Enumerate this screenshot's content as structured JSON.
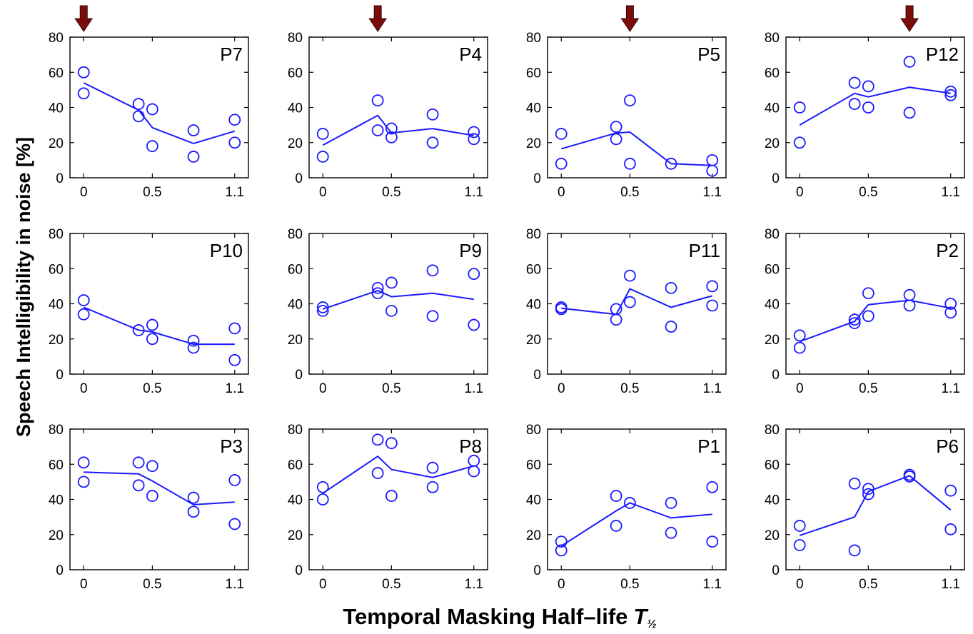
{
  "chart_data": {
    "type": "scatter",
    "xlabel": "Temporal Masking Half–life",
    "xlabel_symbol": "T",
    "xlabel_subscript": "½",
    "ylabel": "Speech Intelligibility in noise [%]",
    "xlim": [
      -0.1,
      1.2
    ],
    "ylim": [
      0,
      80
    ],
    "xticks": [
      0,
      0.5,
      1.1
    ],
    "xtick_labels": [
      "0",
      "0.5",
      "1.1"
    ],
    "yticks": [
      0,
      20,
      40,
      60,
      80
    ],
    "ytick_labels": [
      "0",
      "20",
      "40",
      "60",
      "80"
    ],
    "marker_color": "#1a1aff",
    "arrow_color": "#7b0c0c",
    "panels": [
      {
        "label": "P7",
        "arrow_x": 0,
        "points": [
          [
            0,
            60
          ],
          [
            0,
            48
          ],
          [
            0.4,
            42
          ],
          [
            0.4,
            35
          ],
          [
            0.5,
            39
          ],
          [
            0.5,
            18
          ],
          [
            0.8,
            27
          ],
          [
            0.8,
            12
          ],
          [
            1.1,
            33
          ],
          [
            1.1,
            20
          ]
        ],
        "line": [
          [
            0,
            54
          ],
          [
            0.4,
            38.5
          ],
          [
            0.5,
            28.5
          ],
          [
            0.8,
            19.5
          ],
          [
            1.1,
            26.5
          ]
        ]
      },
      {
        "label": "P4",
        "arrow_x": 0.4,
        "points": [
          [
            0,
            25
          ],
          [
            0,
            12
          ],
          [
            0.4,
            44
          ],
          [
            0.4,
            27
          ],
          [
            0.5,
            28
          ],
          [
            0.5,
            23
          ],
          [
            0.8,
            36
          ],
          [
            0.8,
            20
          ],
          [
            1.1,
            26
          ],
          [
            1.1,
            22
          ]
        ],
        "line": [
          [
            0,
            18.5
          ],
          [
            0.4,
            35.5
          ],
          [
            0.5,
            25.5
          ],
          [
            0.8,
            28
          ],
          [
            1.1,
            24
          ]
        ]
      },
      {
        "label": "P5",
        "arrow_x": 0.5,
        "points": [
          [
            0,
            25
          ],
          [
            0,
            8
          ],
          [
            0.4,
            29
          ],
          [
            0.4,
            22
          ],
          [
            0.5,
            44
          ],
          [
            0.5,
            8
          ],
          [
            0.8,
            8
          ],
          [
            1.1,
            10
          ],
          [
            1.1,
            4
          ]
        ],
        "line": [
          [
            0,
            16.5
          ],
          [
            0.4,
            25.5
          ],
          [
            0.5,
            26
          ],
          [
            0.8,
            8
          ],
          [
            1.1,
            7
          ]
        ]
      },
      {
        "label": "P12",
        "arrow_x": 0.8,
        "points": [
          [
            0,
            40
          ],
          [
            0,
            20
          ],
          [
            0.4,
            54
          ],
          [
            0.4,
            42
          ],
          [
            0.5,
            52
          ],
          [
            0.5,
            40
          ],
          [
            0.8,
            66
          ],
          [
            0.8,
            37
          ],
          [
            1.1,
            49
          ],
          [
            1.1,
            47
          ]
        ],
        "line": [
          [
            0,
            30
          ],
          [
            0.4,
            48
          ],
          [
            0.5,
            46
          ],
          [
            0.8,
            51.5
          ],
          [
            1.1,
            48
          ]
        ]
      },
      {
        "label": "P10",
        "arrow_x": null,
        "points": [
          [
            0,
            42
          ],
          [
            0,
            34
          ],
          [
            0.4,
            25
          ],
          [
            0.5,
            28
          ],
          [
            0.5,
            20
          ],
          [
            0.8,
            19
          ],
          [
            0.8,
            15
          ],
          [
            1.1,
            26
          ],
          [
            1.1,
            8
          ]
        ],
        "line": [
          [
            0,
            38
          ],
          [
            0.4,
            25
          ],
          [
            0.5,
            24
          ],
          [
            0.8,
            17
          ],
          [
            1.1,
            17
          ]
        ]
      },
      {
        "label": "P9",
        "arrow_x": null,
        "points": [
          [
            0,
            38
          ],
          [
            0,
            36
          ],
          [
            0.4,
            49
          ],
          [
            0.4,
            46
          ],
          [
            0.5,
            52
          ],
          [
            0.5,
            36
          ],
          [
            0.8,
            59
          ],
          [
            0.8,
            33
          ],
          [
            1.1,
            57
          ],
          [
            1.1,
            28
          ]
        ],
        "line": [
          [
            0,
            37
          ],
          [
            0.4,
            47.5
          ],
          [
            0.5,
            44
          ],
          [
            0.8,
            46
          ],
          [
            1.1,
            42.5
          ]
        ]
      },
      {
        "label": "P11",
        "arrow_x": null,
        "points": [
          [
            0,
            38
          ],
          [
            0,
            37
          ],
          [
            0.4,
            37
          ],
          [
            0.4,
            31
          ],
          [
            0.5,
            56
          ],
          [
            0.5,
            41
          ],
          [
            0.8,
            49
          ],
          [
            0.8,
            27
          ],
          [
            1.1,
            50
          ],
          [
            1.1,
            39
          ]
        ],
        "line": [
          [
            0,
            37.5
          ],
          [
            0.4,
            34
          ],
          [
            0.5,
            48.5
          ],
          [
            0.8,
            38
          ],
          [
            1.1,
            44.5
          ]
        ]
      },
      {
        "label": "P2",
        "arrow_x": null,
        "points": [
          [
            0,
            22
          ],
          [
            0,
            15
          ],
          [
            0.4,
            31
          ],
          [
            0.4,
            29
          ],
          [
            0.5,
            46
          ],
          [
            0.5,
            33
          ],
          [
            0.8,
            45
          ],
          [
            0.8,
            39
          ],
          [
            1.1,
            40
          ],
          [
            1.1,
            35
          ]
        ],
        "line": [
          [
            0,
            18.5
          ],
          [
            0.4,
            30
          ],
          [
            0.5,
            39.5
          ],
          [
            0.8,
            42
          ],
          [
            1.1,
            37.5
          ]
        ]
      },
      {
        "label": "P3",
        "arrow_x": null,
        "points": [
          [
            0,
            61
          ],
          [
            0,
            50
          ],
          [
            0.4,
            61
          ],
          [
            0.4,
            48
          ],
          [
            0.5,
            59
          ],
          [
            0.5,
            42
          ],
          [
            0.8,
            41
          ],
          [
            0.8,
            33
          ],
          [
            1.1,
            51
          ],
          [
            1.1,
            26
          ]
        ],
        "line": [
          [
            0,
            55.5
          ],
          [
            0.4,
            54.5
          ],
          [
            0.5,
            50.5
          ],
          [
            0.8,
            37
          ],
          [
            1.1,
            38.5
          ]
        ]
      },
      {
        "label": "P8",
        "arrow_x": null,
        "points": [
          [
            0,
            47
          ],
          [
            0,
            40
          ],
          [
            0.4,
            74
          ],
          [
            0.4,
            55
          ],
          [
            0.5,
            72
          ],
          [
            0.5,
            42
          ],
          [
            0.8,
            58
          ],
          [
            0.8,
            47
          ],
          [
            1.1,
            62
          ],
          [
            1.1,
            56
          ]
        ],
        "line": [
          [
            0,
            43.5
          ],
          [
            0.4,
            64.5
          ],
          [
            0.5,
            57
          ],
          [
            0.8,
            52.5
          ],
          [
            1.1,
            59
          ]
        ]
      },
      {
        "label": "P1",
        "arrow_x": null,
        "points": [
          [
            0,
            16
          ],
          [
            0,
            11
          ],
          [
            0.4,
            42
          ],
          [
            0.4,
            25
          ],
          [
            0.5,
            38
          ],
          [
            0.8,
            38
          ],
          [
            0.8,
            21
          ],
          [
            1.1,
            47
          ],
          [
            1.1,
            16
          ]
        ],
        "line": [
          [
            0,
            13.5
          ],
          [
            0.4,
            33.5
          ],
          [
            0.5,
            38
          ],
          [
            0.8,
            29.5
          ],
          [
            1.1,
            31.5
          ]
        ]
      },
      {
        "label": "P6",
        "arrow_x": null,
        "points": [
          [
            0,
            25
          ],
          [
            0,
            14
          ],
          [
            0.4,
            49
          ],
          [
            0.4,
            11
          ],
          [
            0.5,
            46
          ],
          [
            0.5,
            43
          ],
          [
            0.8,
            54
          ],
          [
            0.8,
            53
          ],
          [
            1.1,
            45
          ],
          [
            1.1,
            23
          ]
        ],
        "line": [
          [
            0,
            19.5
          ],
          [
            0.4,
            30
          ],
          [
            0.5,
            44.5
          ],
          [
            0.8,
            53.5
          ],
          [
            1.1,
            34
          ]
        ]
      }
    ]
  }
}
